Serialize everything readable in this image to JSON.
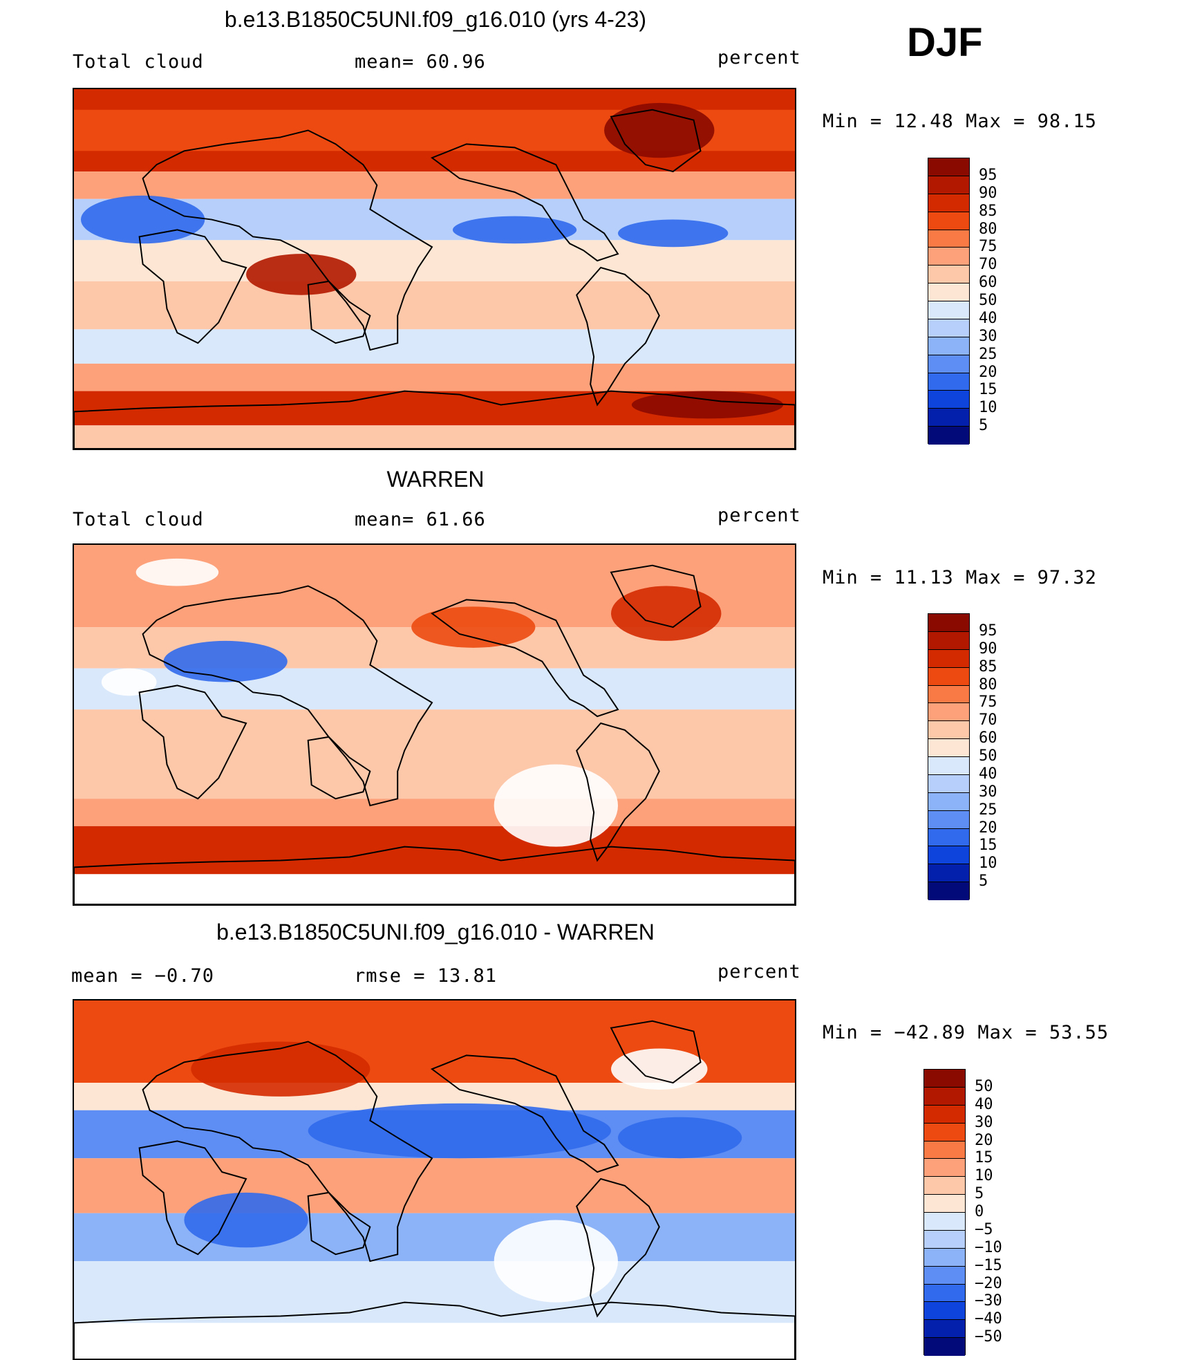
{
  "season_label": "DJF",
  "panels": [
    {
      "id": "model",
      "title": "b.e13.B1850C5UNI.f09_g16.010 (yrs 4-23)",
      "left_text": "Total cloud",
      "center_text": "mean=   60.96",
      "units": "percent",
      "minmax_text": "Min =   12.48 Max =   98.15",
      "colorbar_labels": [
        "95",
        "90",
        "85",
        "80",
        "75",
        "70",
        "60",
        "50",
        "40",
        "30",
        "25",
        "20",
        "15",
        "10",
        "5"
      ],
      "colorbar_colors": [
        "#8b0a00",
        "#b21800",
        "#d42a00",
        "#ec4a10",
        "#f97a45",
        "#fca17a",
        "#fdc7aa",
        "#fde6d3",
        "#d9e8fb",
        "#b6d0fb",
        "#8cb2f8",
        "#5e8ef3",
        "#316aec",
        "#0f44dc",
        "#0320ac",
        "#020a7a"
      ],
      "has_missing": false
    },
    {
      "id": "obs",
      "title": "WARREN",
      "left_text": "Total cloud",
      "center_text": "mean=   61.66",
      "units": "percent",
      "minmax_text": "Min =   11.13 Max =   97.32",
      "colorbar_labels": [
        "95",
        "90",
        "85",
        "80",
        "75",
        "70",
        "60",
        "50",
        "40",
        "30",
        "25",
        "20",
        "15",
        "10",
        "5"
      ],
      "colorbar_colors": [
        "#8b0a00",
        "#b21800",
        "#d42a00",
        "#ec4a10",
        "#f97a45",
        "#fca17a",
        "#fdc7aa",
        "#fde6d3",
        "#d9e8fb",
        "#b6d0fb",
        "#8cb2f8",
        "#5e8ef3",
        "#316aec",
        "#0f44dc",
        "#0320ac",
        "#020a7a"
      ],
      "has_missing": true
    },
    {
      "id": "diff",
      "title": "b.e13.B1850C5UNI.f09_g16.010 - WARREN",
      "left_text": "mean =   −0.70",
      "center_text": "rmse =   13.81",
      "units": "percent",
      "minmax_text": "Min = −42.89 Max =   53.55",
      "colorbar_labels": [
        "50",
        "40",
        "30",
        "20",
        "15",
        "10",
        "5",
        "0",
        "−5",
        "−10",
        "−15",
        "−20",
        "−30",
        "−40",
        "−50"
      ],
      "colorbar_colors": [
        "#8b0a00",
        "#b21800",
        "#d42a00",
        "#ec4a10",
        "#f97a45",
        "#fca17a",
        "#fdc7aa",
        "#fde6d3",
        "#d9e8fb",
        "#b6d0fb",
        "#8cb2f8",
        "#5e8ef3",
        "#316aec",
        "#0f44dc",
        "#0320ac",
        "#020a7a"
      ],
      "has_missing": true
    }
  ]
}
